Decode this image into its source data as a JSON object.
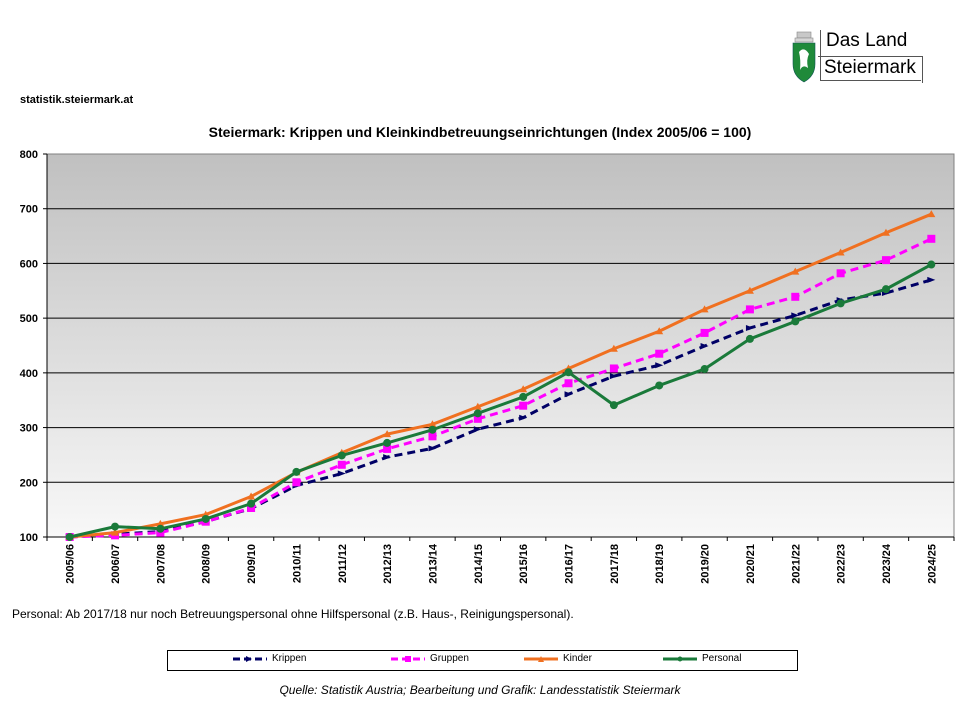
{
  "header": {
    "site": "statistik.steiermark.at",
    "logo": {
      "line1": "Das Land",
      "line2": "Steiermark"
    }
  },
  "chart_title": "Steiermark: Krippen und Kleinkindbetreuungseinrichtungen (Index 2005/06 = 100)",
  "note": "Personal: Ab 2017/18  nur noch Betreuungspersonal ohne Hilfspersonal (z.B. Haus-, Reinigungspersonal).",
  "source": "Quelle: Statistik Austria; Bearbeitung und Grafik: Landesstatistik Steiermark",
  "legend": [
    {
      "name": "Krippen",
      "color": "#000066",
      "dash": true,
      "marker": "diamond"
    },
    {
      "name": "Gruppen",
      "color": "#ff00ff",
      "dash": true,
      "marker": "square"
    },
    {
      "name": "Kinder",
      "color": "#f07020",
      "dash": false,
      "marker": "triangle"
    },
    {
      "name": "Personal",
      "color": "#1a7a3a",
      "dash": false,
      "marker": "circle"
    }
  ],
  "chart_data": {
    "type": "line",
    "title": "Steiermark: Krippen und Kleinkindbetreuungseinrichtungen (Index 2005/06 = 100)",
    "xlabel": "",
    "ylabel": "",
    "ylim": [
      100,
      800
    ],
    "yticks": [
      100,
      200,
      300,
      400,
      500,
      600,
      700,
      800
    ],
    "grid": true,
    "legend_position": "bottom",
    "categories": [
      "2005/06",
      "2006/07",
      "2007/08",
      "2008/09",
      "2009/10",
      "2010/11",
      "2011/12",
      "2012/13",
      "2013/14",
      "2014/15",
      "2015/16",
      "2016/17",
      "2017/18",
      "2018/19",
      "2019/20",
      "2020/21",
      "2021/22",
      "2022/23",
      "2023/24",
      "2024/25"
    ],
    "series": [
      {
        "name": "Krippen",
        "color": "#000066",
        "values": [
          100,
          105,
          110,
          128,
          152,
          194,
          216,
          246,
          262,
          297,
          318,
          361,
          394,
          414,
          449,
          482,
          505,
          533,
          546,
          570
        ]
      },
      {
        "name": "Gruppen",
        "color": "#ff00ff",
        "values": [
          100,
          103,
          108,
          128,
          153,
          200,
          232,
          261,
          284,
          316,
          340,
          381,
          408,
          435,
          473,
          516,
          539,
          582,
          606,
          645
        ]
      },
      {
        "name": "Kinder",
        "color": "#f07020",
        "values": [
          100,
          108,
          124,
          141,
          174,
          218,
          254,
          288,
          306,
          338,
          370,
          408,
          444,
          476,
          516,
          550,
          585,
          620,
          656,
          690
        ]
      },
      {
        "name": "Personal",
        "color": "#1a7a3a",
        "values": [
          100,
          119,
          115,
          133,
          161,
          219,
          249,
          272,
          296,
          326,
          356,
          401,
          341,
          377,
          407,
          462,
          494,
          527,
          553,
          598
        ]
      }
    ]
  }
}
